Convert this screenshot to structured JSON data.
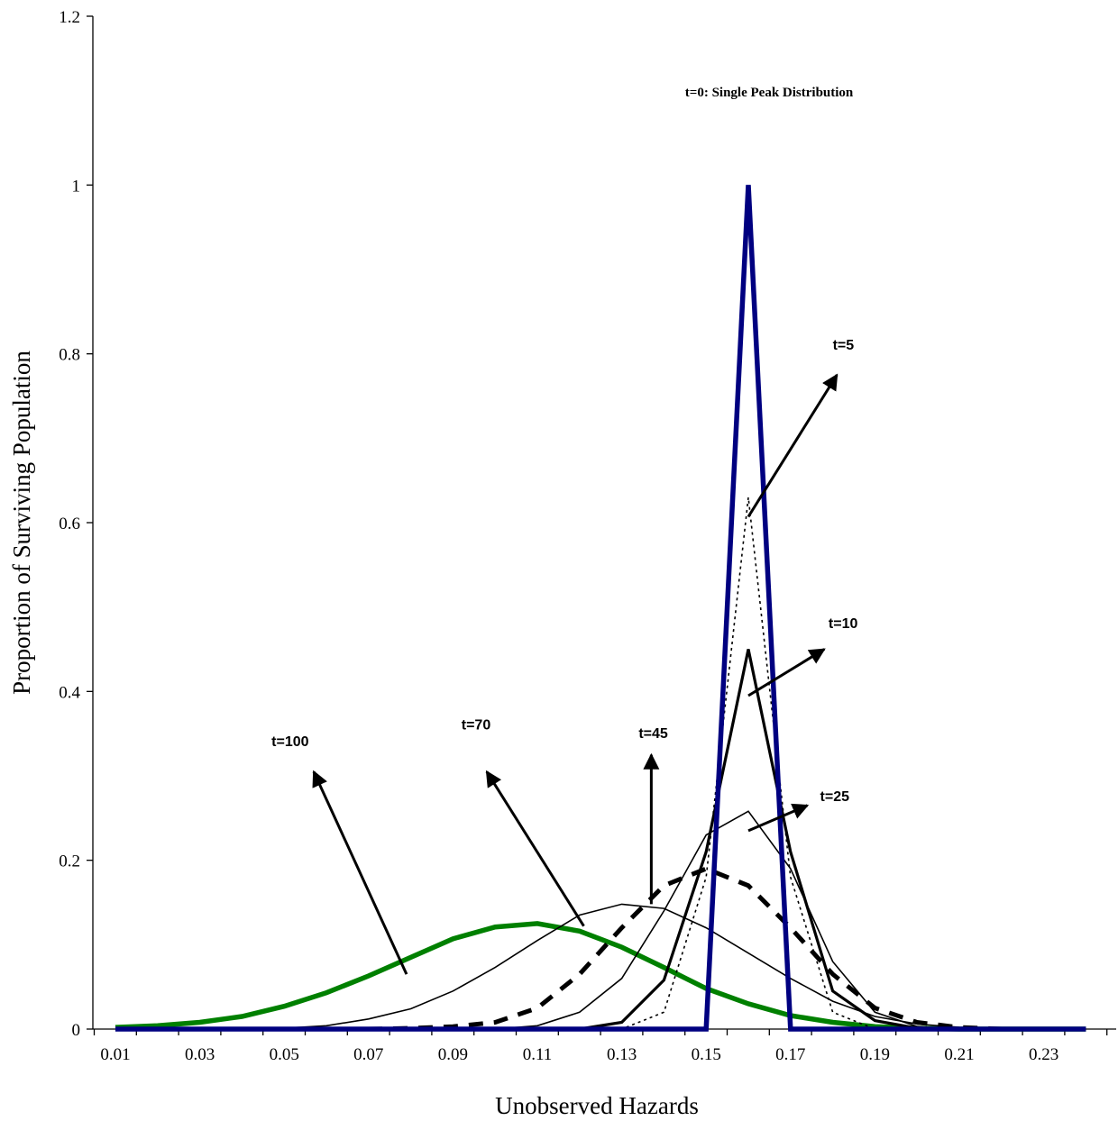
{
  "chart_data": {
    "type": "line",
    "title": "",
    "xlabel": "Unobserved Hazards",
    "ylabel": "Proportion of Surviving Population",
    "xlim": [
      0.01,
      0.24
    ],
    "ylim": [
      0,
      1.2
    ],
    "x_tick_labels": [
      "0.01",
      "0.03",
      "0.05",
      "0.07",
      "0.09",
      "0.11",
      "0.13",
      "0.15",
      "0.17",
      "0.19",
      "0.21",
      "0.23"
    ],
    "y_tick_labels": [
      "0",
      "0.2",
      "0.4",
      "0.6",
      "0.8",
      "1",
      "1.2"
    ],
    "y_ticks": [
      0,
      0.2,
      0.4,
      0.6,
      0.8,
      1.0,
      1.2
    ],
    "x": [
      0.01,
      0.02,
      0.03,
      0.04,
      0.05,
      0.06,
      0.07,
      0.08,
      0.09,
      0.1,
      0.11,
      0.12,
      0.13,
      0.14,
      0.15,
      0.16,
      0.17,
      0.18,
      0.19,
      0.2,
      0.21,
      0.22,
      0.23,
      0.24
    ],
    "grid": false,
    "legend": "none",
    "series": [
      {
        "color": "#000080",
        "style": "thick-solid",
        "values": [
          0,
          0,
          0,
          0,
          0,
          0,
          0,
          0,
          0,
          0,
          0,
          0,
          0,
          0,
          0,
          1.0,
          0,
          0,
          0,
          0,
          0,
          0,
          0,
          0
        ]
      },
      {
        "color": "#000000",
        "style": "dotted",
        "values": [
          0,
          0,
          0,
          0,
          0,
          0,
          0,
          0,
          0,
          0,
          0,
          0,
          0,
          0.02,
          0.18,
          0.63,
          0.18,
          0.02,
          0,
          0,
          0,
          0,
          0,
          0
        ]
      },
      {
        "color": "#000000",
        "style": "medium-solid",
        "values": [
          0,
          0,
          0,
          0,
          0,
          0,
          0,
          0,
          0,
          0,
          0,
          0,
          0.008,
          0.058,
          0.21,
          0.45,
          0.21,
          0.045,
          0.01,
          0.001,
          0,
          0,
          0,
          0
        ]
      },
      {
        "color": "#000000",
        "style": "thin-solid",
        "values": [
          0,
          0,
          0,
          0,
          0,
          0,
          0,
          0,
          0,
          0,
          0.004,
          0.02,
          0.06,
          0.14,
          0.23,
          0.258,
          0.19,
          0.08,
          0.02,
          0.003,
          0,
          0,
          0,
          0
        ]
      },
      {
        "color": "#000000",
        "style": "thick-dashed",
        "values": [
          0,
          0,
          0,
          0,
          0,
          0,
          0,
          0.001,
          0.003,
          0.008,
          0.025,
          0.065,
          0.12,
          0.17,
          0.19,
          0.17,
          0.12,
          0.065,
          0.025,
          0.008,
          0.002,
          0,
          0,
          0
        ]
      },
      {
        "color": "#000000",
        "style": "thin-solid",
        "values": [
          0,
          0,
          0,
          0,
          0.001,
          0.004,
          0.012,
          0.024,
          0.045,
          0.073,
          0.105,
          0.135,
          0.148,
          0.143,
          0.12,
          0.09,
          0.06,
          0.033,
          0.015,
          0.006,
          0.002,
          0,
          0,
          0
        ]
      },
      {
        "color": "#008000",
        "style": "thick-solid",
        "values": [
          0.002,
          0.004,
          0.008,
          0.015,
          0.027,
          0.043,
          0.063,
          0.085,
          0.107,
          0.121,
          0.125,
          0.116,
          0.097,
          0.073,
          0.048,
          0.03,
          0.016,
          0.008,
          0.003,
          0.001,
          0,
          0,
          0,
          0
        ]
      }
    ],
    "annotations": [
      {
        "text": "t=0: Single Peak Distribution",
        "x": 0.145,
        "y": 1.105,
        "style": "serif"
      },
      {
        "text": "t=5",
        "x": 0.18,
        "y": 0.805,
        "style": "sans"
      },
      {
        "text": "t=10",
        "x": 0.179,
        "y": 0.475,
        "style": "sans"
      },
      {
        "text": "t=25",
        "x": 0.177,
        "y": 0.27,
        "style": "sans"
      },
      {
        "text": "t=45",
        "x": 0.134,
        "y": 0.345,
        "style": "sans"
      },
      {
        "text": "t=70",
        "x": 0.092,
        "y": 0.355,
        "style": "sans"
      },
      {
        "text": "t=100",
        "x": 0.047,
        "y": 0.335,
        "style": "sans"
      }
    ],
    "arrows": [
      {
        "from": [
          0.16,
          0.607
        ],
        "to": [
          0.181,
          0.775
        ]
      },
      {
        "from": [
          0.16,
          0.395
        ],
        "to": [
          0.178,
          0.45
        ]
      },
      {
        "from": [
          0.16,
          0.235
        ],
        "to": [
          0.174,
          0.265
        ]
      },
      {
        "from": [
          0.137,
          0.148
        ],
        "to": [
          0.137,
          0.325
        ]
      },
      {
        "from": [
          0.121,
          0.122
        ],
        "to": [
          0.098,
          0.305
        ]
      },
      {
        "from": [
          0.079,
          0.065
        ],
        "to": [
          0.057,
          0.305
        ]
      }
    ]
  }
}
